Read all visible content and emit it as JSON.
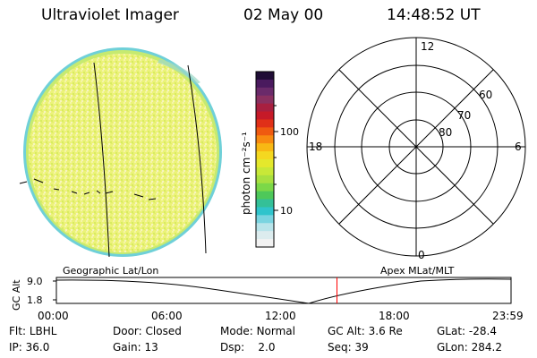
{
  "header": {
    "title": "Ultraviolet Imager",
    "date": "02 May 00",
    "time": "14:48:52 UT"
  },
  "colorbar": {
    "unit_label": "photon cm⁻²s⁻¹",
    "tick_labels": [
      "100",
      "10"
    ],
    "colors": [
      "#200d36",
      "#4a1a5e",
      "#6a2a6a",
      "#8a3060",
      "#a82040",
      "#c61a28",
      "#e03018",
      "#ef5a10",
      "#f88a10",
      "#f8b814",
      "#f4d820",
      "#e4e82c",
      "#c8e838",
      "#a8e040",
      "#7cd848",
      "#4ec85a",
      "#34c098",
      "#30c4cc",
      "#7ad4e0",
      "#b8e4ea",
      "#dcecee",
      "#f2f2f2"
    ]
  },
  "polar_plot": {
    "labels": {
      "top": "12",
      "bottom": "0",
      "left": "18",
      "right": "6",
      "ring_60": "60",
      "ring_70": "70",
      "ring_80": "80"
    }
  },
  "coord_labels": {
    "left": "Geographic Lat/Lon",
    "right": "Apex MLat/MLT"
  },
  "timeline": {
    "ylabel": "GC Alt",
    "y_ticks": [
      "9.0",
      "1.8"
    ],
    "x_ticks": [
      "00:00",
      "06:00",
      "12:00",
      "18:00",
      "23:59"
    ],
    "current_time_marker": "14:48",
    "marker_color": "#ff0000"
  },
  "status": {
    "row1": [
      {
        "label": "Flt:",
        "value": "LBHL"
      },
      {
        "label": "Door:",
        "value": "Closed"
      },
      {
        "label": "Mode:",
        "value": "Normal"
      },
      {
        "label": "GC Alt:",
        "value": "3.6 Re"
      },
      {
        "label": "GLat:",
        "value": "-28.4"
      }
    ],
    "row2": [
      {
        "label": "IP:",
        "value": "36.0"
      },
      {
        "label": "Gain:",
        "value": "13"
      },
      {
        "label": "Dsp:",
        "value": "2.0"
      },
      {
        "label": "Seq:",
        "value": "39"
      },
      {
        "label": "GLon:",
        "value": "284.2"
      }
    ]
  }
}
